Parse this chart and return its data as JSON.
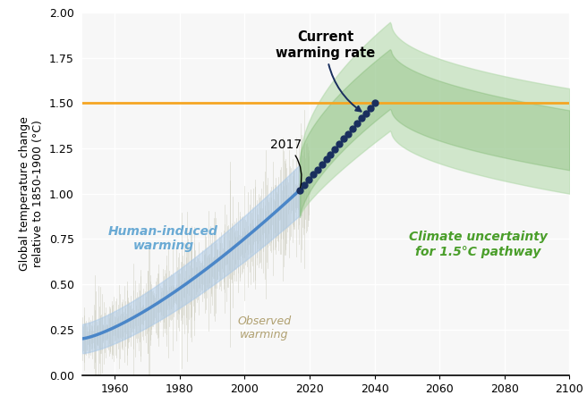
{
  "title": "",
  "ylabel": "Global temperature change\nrelative to 1850-1900 (°C)",
  "xlabel": "",
  "xlim": [
    1950,
    2100
  ],
  "ylim": [
    0.0,
    2.0
  ],
  "yticks": [
    0.0,
    0.25,
    0.5,
    0.75,
    1.0,
    1.25,
    1.5,
    1.75,
    2.0
  ],
  "xticks": [
    1960,
    1980,
    2000,
    2020,
    2040,
    2060,
    2080,
    2100
  ],
  "hline_y": 1.5,
  "hline_color": "#F5A623",
  "background_color": "#f7f7f7",
  "observed_color": "#c8c8b8",
  "human_line_color": "#4a86c8",
  "human_band_color": "#a8c8e8",
  "dotted_line_color": "#1a2f5e",
  "green_outer_color": "#b0d8a8",
  "green_inner_color": "#70b060",
  "label_human_induced": "Human-induced\nwarming",
  "label_observed": "Observed\nwarming",
  "label_climate_uncertainty": "Climate uncertainty\nfor 1.5°C pathway",
  "label_current_warming": "Current\nwarming rate",
  "label_2017": "2017",
  "human_induced_color_text": "#6aaad4",
  "green_text_color": "#4a9e2a",
  "annotation_arrow_color": "#1a2f5e"
}
